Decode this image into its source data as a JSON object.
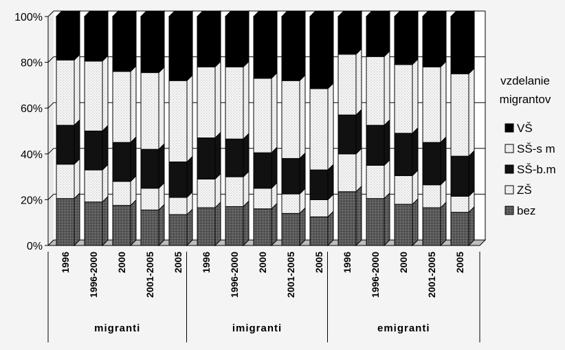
{
  "chart_data": {
    "type": "bar",
    "stacked": true,
    "percent": true,
    "three_d": true,
    "grid": true,
    "legend_position": "right",
    "ylim": [
      0,
      100
    ],
    "yticks": [
      "0%",
      "20%",
      "40%",
      "60%",
      "80%",
      "100%"
    ],
    "groups": [
      {
        "label": "migranti",
        "categories": [
          "1996",
          "1996-2000",
          "2000",
          "2001-2005",
          "2005"
        ]
      },
      {
        "label": "imigranti",
        "categories": [
          "1996",
          "1996-2000",
          "2000",
          "2001-2005",
          "2005"
        ]
      },
      {
        "label": "emigranti",
        "categories": [
          "1996",
          "1996-2000",
          "2000",
          "2001-2005",
          "2005"
        ]
      }
    ],
    "legend_title": [
      "vzdelanie",
      "migrantov"
    ],
    "series": [
      {
        "name": "bez",
        "color": "#555555",
        "pattern": "dark-dots",
        "values": [
          20.5,
          19,
          17.5,
          15.5,
          13.5,
          16.5,
          17,
          16,
          14,
          12.5,
          23.5,
          20.5,
          18,
          16.5,
          14.5
        ]
      },
      {
        "name": "ZŠ",
        "color": "#ececec",
        "pattern": "light-dots",
        "values": [
          15,
          14,
          10.5,
          9.5,
          7.5,
          12.5,
          13,
          9,
          8.5,
          7.5,
          16.5,
          14.5,
          12.5,
          10,
          7
        ]
      },
      {
        "name": "SŠ-b.m",
        "color": "#111111",
        "pattern": "solid",
        "values": [
          17,
          17,
          17,
          17,
          15.5,
          18,
          16.5,
          15.5,
          15.5,
          13,
          17,
          17.5,
          18.5,
          18.5,
          17.5
        ]
      },
      {
        "name": "SŠ-s m",
        "color": "#ffffff",
        "pattern": "light-dots",
        "values": [
          28.5,
          30.5,
          31,
          33.5,
          35.5,
          31,
          31.5,
          32.5,
          34,
          35.5,
          26.5,
          30,
          30,
          33,
          36
        ]
      },
      {
        "name": "VŠ",
        "color": "#000000",
        "pattern": "solid",
        "values": [
          19,
          19.5,
          24,
          24.5,
          28,
          22,
          22,
          27,
          28,
          31.5,
          16.5,
          17.5,
          21,
          22,
          25
        ]
      }
    ]
  }
}
